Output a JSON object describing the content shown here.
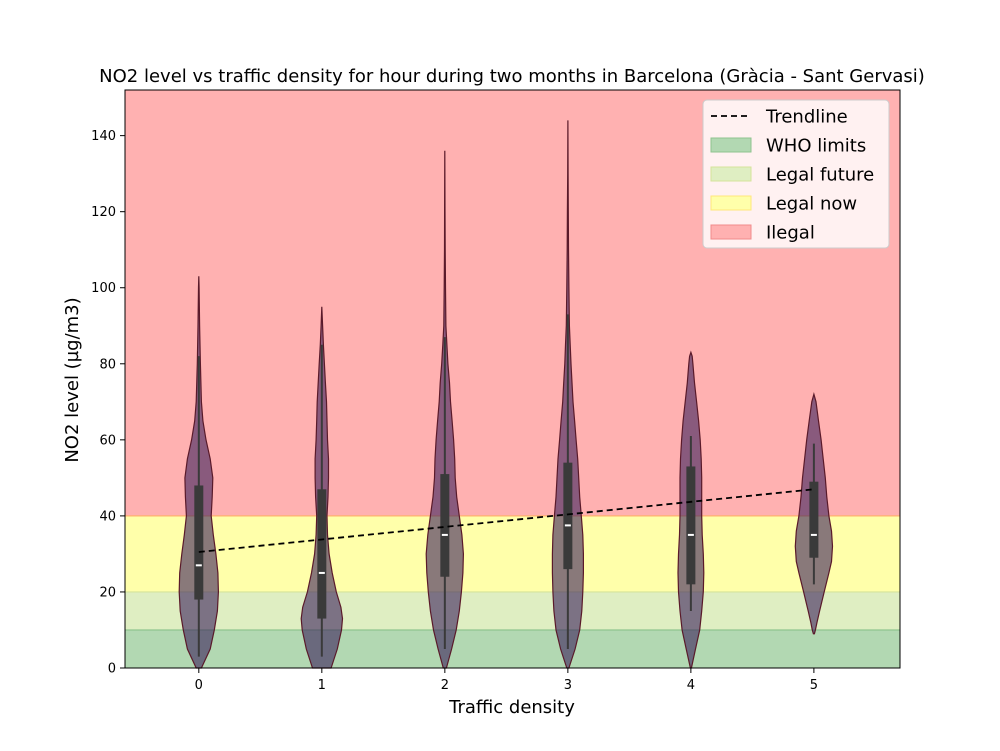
{
  "chart_data": {
    "type": "violin",
    "title": "NO2 level vs traffic density for hour during two months in Barcelona (Gràcia - Sant Gervasi)",
    "xlabel": "Traffic density",
    "ylabel": "NO2 level (µg/m3)",
    "categories": [
      "0",
      "1",
      "2",
      "3",
      "4",
      "5"
    ],
    "xlim": [
      -0.6,
      5.7
    ],
    "ylim": [
      0,
      152
    ],
    "yticks": [
      0,
      20,
      40,
      60,
      80,
      100,
      120,
      140
    ],
    "grid": false,
    "legend_position": "top-right",
    "bands": [
      {
        "label": "WHO limits",
        "from": 0,
        "to": 10,
        "color": "#b2d8b2"
      },
      {
        "label": "Legal future",
        "from": 10,
        "to": 20,
        "color": "#dfeec2"
      },
      {
        "label": "Legal now",
        "from": 20,
        "to": 40,
        "color": "#ffffaa"
      },
      {
        "label": "Ilegal",
        "from": 40,
        "to": 152,
        "color": "#ffb1b1"
      }
    ],
    "legend": [
      "Trendline",
      "WHO limits",
      "Legal future",
      "Legal now",
      "Ilegal"
    ],
    "violin_color": "#3b1f5a",
    "violins": [
      {
        "category": "0",
        "min": 0,
        "max": 103,
        "q1": 18,
        "median": 27,
        "q3": 48,
        "whisker_low": 3,
        "whisker_high": 82,
        "profile": [
          [
            0,
            0.05
          ],
          [
            5,
            0.22
          ],
          [
            10,
            0.3
          ],
          [
            15,
            0.36
          ],
          [
            20,
            0.38
          ],
          [
            25,
            0.37
          ],
          [
            30,
            0.33
          ],
          [
            35,
            0.28
          ],
          [
            40,
            0.24
          ],
          [
            45,
            0.26
          ],
          [
            50,
            0.27
          ],
          [
            55,
            0.22
          ],
          [
            60,
            0.14
          ],
          [
            65,
            0.08
          ],
          [
            70,
            0.05
          ],
          [
            80,
            0.03
          ],
          [
            90,
            0.015
          ],
          [
            100,
            0.006
          ],
          [
            103,
            0
          ]
        ]
      },
      {
        "category": "1",
        "min": 0,
        "max": 95,
        "q1": 13,
        "median": 25,
        "q3": 47,
        "whisker_low": 3,
        "whisker_high": 85,
        "profile": [
          [
            0,
            0.18
          ],
          [
            5,
            0.3
          ],
          [
            10,
            0.38
          ],
          [
            13,
            0.4
          ],
          [
            16,
            0.37
          ],
          [
            20,
            0.28
          ],
          [
            25,
            0.2
          ],
          [
            30,
            0.14
          ],
          [
            35,
            0.11
          ],
          [
            40,
            0.1
          ],
          [
            45,
            0.12
          ],
          [
            50,
            0.13
          ],
          [
            55,
            0.13
          ],
          [
            60,
            0.11
          ],
          [
            65,
            0.1
          ],
          [
            70,
            0.09
          ],
          [
            75,
            0.07
          ],
          [
            80,
            0.05
          ],
          [
            85,
            0.03
          ],
          [
            90,
            0.015
          ],
          [
            95,
            0
          ]
        ]
      },
      {
        "category": "2",
        "min": 0,
        "max": 136,
        "q1": 24,
        "median": 35,
        "q3": 51,
        "whisker_low": 5,
        "whisker_high": 87,
        "profile": [
          [
            0,
            0.03
          ],
          [
            5,
            0.13
          ],
          [
            10,
            0.22
          ],
          [
            15,
            0.28
          ],
          [
            20,
            0.32
          ],
          [
            25,
            0.35
          ],
          [
            30,
            0.36
          ],
          [
            35,
            0.33
          ],
          [
            40,
            0.28
          ],
          [
            45,
            0.23
          ],
          [
            50,
            0.2
          ],
          [
            55,
            0.19
          ],
          [
            60,
            0.17
          ],
          [
            65,
            0.14
          ],
          [
            70,
            0.11
          ],
          [
            75,
            0.09
          ],
          [
            80,
            0.06
          ],
          [
            85,
            0.04
          ],
          [
            90,
            0.02
          ],
          [
            100,
            0.012
          ],
          [
            110,
            0.006
          ],
          [
            120,
            0.004
          ],
          [
            136,
            0
          ]
        ]
      },
      {
        "category": "3",
        "min": 0,
        "max": 144,
        "q1": 26,
        "median": 37.5,
        "q3": 54,
        "whisker_low": 5,
        "whisker_high": 93,
        "profile": [
          [
            0,
            0.02
          ],
          [
            5,
            0.14
          ],
          [
            10,
            0.23
          ],
          [
            15,
            0.27
          ],
          [
            20,
            0.29
          ],
          [
            25,
            0.3
          ],
          [
            30,
            0.3
          ],
          [
            35,
            0.29
          ],
          [
            40,
            0.26
          ],
          [
            45,
            0.23
          ],
          [
            50,
            0.21
          ],
          [
            55,
            0.19
          ],
          [
            60,
            0.16
          ],
          [
            65,
            0.13
          ],
          [
            70,
            0.1
          ],
          [
            75,
            0.08
          ],
          [
            80,
            0.06
          ],
          [
            85,
            0.045
          ],
          [
            90,
            0.03
          ],
          [
            100,
            0.02
          ],
          [
            110,
            0.012
          ],
          [
            120,
            0.008
          ],
          [
            130,
            0.004
          ],
          [
            144,
            0
          ]
        ]
      },
      {
        "category": "4",
        "min": 0,
        "max": 83,
        "q1": 22,
        "median": 35,
        "q3": 53,
        "whisker_low": 15,
        "whisker_high": 61,
        "profile": [
          [
            0,
            0.01
          ],
          [
            5,
            0.09
          ],
          [
            10,
            0.17
          ],
          [
            15,
            0.21
          ],
          [
            20,
            0.24
          ],
          [
            25,
            0.25
          ],
          [
            30,
            0.24
          ],
          [
            35,
            0.22
          ],
          [
            40,
            0.21
          ],
          [
            45,
            0.21
          ],
          [
            50,
            0.21
          ],
          [
            55,
            0.2
          ],
          [
            60,
            0.18
          ],
          [
            65,
            0.15
          ],
          [
            70,
            0.11
          ],
          [
            75,
            0.07
          ],
          [
            80,
            0.04
          ],
          [
            82,
            0.025
          ],
          [
            83,
            0
          ]
        ]
      },
      {
        "category": "5",
        "min": 9,
        "max": 72,
        "q1": 29,
        "median": 35,
        "q3": 49,
        "whisker_low": 22,
        "whisker_high": 59,
        "profile": [
          [
            9,
            0.01
          ],
          [
            10,
            0.03
          ],
          [
            12,
            0.06
          ],
          [
            15,
            0.11
          ],
          [
            20,
            0.2
          ],
          [
            25,
            0.29
          ],
          [
            28,
            0.34
          ],
          [
            32,
            0.36
          ],
          [
            36,
            0.34
          ],
          [
            40,
            0.29
          ],
          [
            45,
            0.25
          ],
          [
            50,
            0.22
          ],
          [
            55,
            0.18
          ],
          [
            60,
            0.14
          ],
          [
            65,
            0.09
          ],
          [
            70,
            0.04
          ],
          [
            72,
            0
          ]
        ]
      }
    ],
    "trendline": {
      "label": "Trendline",
      "x": [
        0,
        5
      ],
      "y": [
        30.5,
        47
      ],
      "style": "dashed",
      "color": "#000000"
    }
  }
}
